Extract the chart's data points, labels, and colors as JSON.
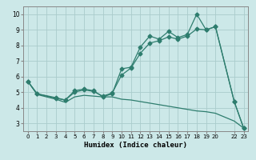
{
  "title": "",
  "xlabel": "Humidex (Indice chaleur)",
  "ylabel": "",
  "bg_color": "#cce8e8",
  "grid_color": "#aacccc",
  "line_color": "#2e7d6e",
  "series": [
    {
      "x": [
        0,
        1,
        3,
        4,
        5,
        6,
        7,
        8,
        9,
        10,
        11,
        12,
        13,
        14,
        15,
        16,
        17,
        18,
        19,
        20,
        22,
        23
      ],
      "y": [
        5.7,
        4.9,
        4.6,
        4.5,
        5.1,
        5.2,
        5.1,
        4.7,
        4.9,
        6.5,
        6.6,
        7.9,
        8.6,
        8.4,
        8.9,
        8.5,
        8.7,
        10.0,
        9.0,
        9.2,
        4.4,
        2.7
      ],
      "marker": "D",
      "markersize": 2.5
    },
    {
      "x": [
        0,
        1,
        3,
        4,
        5,
        6,
        7,
        8,
        9,
        10,
        11,
        12,
        13,
        14,
        15,
        16,
        17,
        18,
        19,
        20,
        22,
        23
      ],
      "y": [
        5.7,
        4.9,
        4.65,
        4.5,
        5.0,
        5.15,
        5.05,
        4.75,
        4.95,
        6.1,
        6.55,
        7.5,
        8.15,
        8.3,
        8.55,
        8.4,
        8.6,
        9.05,
        9.0,
        9.2,
        4.4,
        2.7
      ],
      "marker": "D",
      "markersize": 2.5
    },
    {
      "x": [
        0,
        1,
        3,
        4,
        5,
        6,
        7,
        8,
        9,
        10,
        11,
        12,
        13,
        14,
        15,
        16,
        17,
        18,
        19,
        20,
        22,
        23
      ],
      "y": [
        5.7,
        4.85,
        4.55,
        4.35,
        4.7,
        4.8,
        4.75,
        4.7,
        4.7,
        4.55,
        4.5,
        4.4,
        4.3,
        4.2,
        4.1,
        4.0,
        3.9,
        3.8,
        3.75,
        3.65,
        3.15,
        2.7
      ],
      "marker": null,
      "markersize": 0
    }
  ],
  "xlim": [
    -0.5,
    23.5
  ],
  "ylim": [
    2.5,
    10.5
  ],
  "yticks": [
    3,
    4,
    5,
    6,
    7,
    8,
    9,
    10
  ],
  "xticks": [
    0,
    1,
    2,
    3,
    4,
    5,
    6,
    7,
    8,
    9,
    10,
    11,
    12,
    13,
    14,
    15,
    16,
    17,
    18,
    19,
    20,
    22,
    23
  ],
  "xtick_labels": [
    "0",
    "1",
    "2",
    "3",
    "4",
    "5",
    "6",
    "7",
    "8",
    "9",
    "10",
    "11",
    "12",
    "13",
    "14",
    "15",
    "16",
    "17",
    "18",
    "19",
    "20",
    "22",
    "23"
  ]
}
